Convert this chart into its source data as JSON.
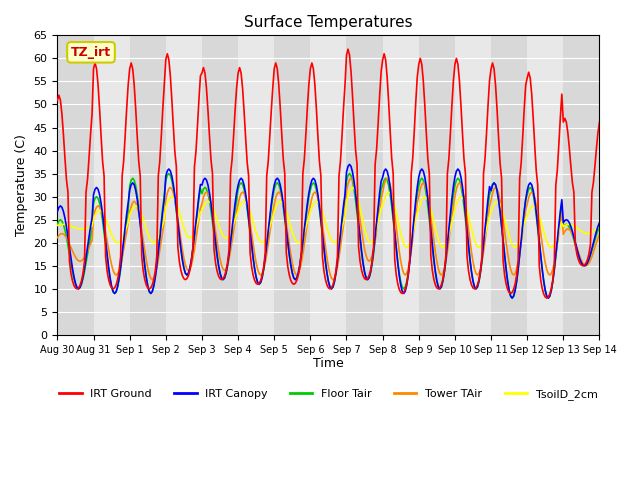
{
  "title": "Surface Temperatures",
  "xlabel": "Time",
  "ylabel": "Temperature (C)",
  "ylim": [
    0,
    65
  ],
  "yticks": [
    0,
    5,
    10,
    15,
    20,
    25,
    30,
    35,
    40,
    45,
    50,
    55,
    60,
    65
  ],
  "series": {
    "IRT Ground": {
      "color": "#ff0000",
      "lw": 1.2
    },
    "IRT Canopy": {
      "color": "#0000ff",
      "lw": 1.2
    },
    "Floor Tair": {
      "color": "#00cc00",
      "lw": 1.2
    },
    "Tower TAir": {
      "color": "#ff8800",
      "lw": 1.2
    },
    "TsoilD_2cm": {
      "color": "#ffff00",
      "lw": 1.2
    }
  },
  "annotation_text": "TZ_irt",
  "annotation_color": "#cc0000",
  "annotation_bg": "#ffffcc",
  "annotation_border": "#cccc00",
  "tick_dates": [
    "Aug 30",
    "Aug 31",
    "Sep 1",
    "Sep 2",
    "Sep 3",
    "Sep 4",
    "Sep 5",
    "Sep 6",
    "Sep 7",
    "Sep 8",
    "Sep 9",
    "Sep 10",
    "Sep 11",
    "Sep 12",
    "Sep 13",
    "Sep 14"
  ],
  "irt_ground_peaks": [
    52,
    59,
    59,
    61,
    58,
    58,
    59,
    59,
    62,
    61,
    60,
    60,
    59,
    57,
    47
  ],
  "irt_ground_troughs": [
    10,
    10,
    10,
    12,
    12,
    11,
    11,
    10,
    12,
    9,
    10,
    10,
    9,
    8,
    15
  ],
  "canopy_peaks": [
    28,
    32,
    33,
    36,
    34,
    34,
    34,
    34,
    37,
    36,
    36,
    36,
    33,
    33,
    25
  ],
  "canopy_troughs": [
    10,
    9,
    9,
    13,
    12,
    11,
    12,
    10,
    12,
    9,
    10,
    10,
    8,
    8,
    15
  ],
  "floor_peaks": [
    25,
    30,
    34,
    35,
    32,
    33,
    33,
    33,
    35,
    34,
    34,
    34,
    33,
    32,
    24
  ],
  "floor_troughs": [
    10,
    9,
    9,
    13,
    12,
    11,
    12,
    10,
    12,
    10,
    10,
    10,
    8,
    8,
    15
  ],
  "tower_peaks": [
    22,
    28,
    29,
    32,
    31,
    31,
    31,
    31,
    34,
    34,
    33,
    33,
    32,
    31,
    23
  ],
  "tower_troughs": [
    16,
    13,
    12,
    14,
    14,
    13,
    13,
    12,
    16,
    13,
    13,
    13,
    13,
    13,
    15
  ],
  "soil_peaks": [
    24,
    27,
    28,
    30,
    29,
    29,
    29,
    29,
    32,
    31,
    30,
    30,
    29,
    28,
    24
  ],
  "soil_troughs": [
    23,
    20,
    20,
    21,
    21,
    20,
    20,
    20,
    20,
    19,
    19,
    19,
    19,
    19,
    22
  ]
}
